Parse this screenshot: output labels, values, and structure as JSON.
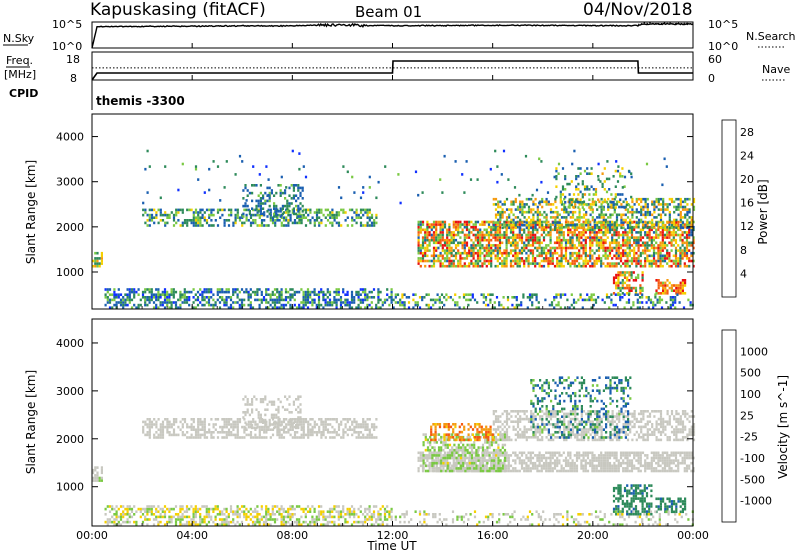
{
  "header": {
    "station": "Kapuskasing (fitACF)",
    "beam": "Beam 01",
    "date": "04/Nov/2018"
  },
  "noise_panel": {
    "left_label": "N.Sky",
    "right_label": "N.Search",
    "left_ticks": [
      "10^5",
      "10^0"
    ],
    "right_ticks": [
      "10^5",
      "10^0"
    ]
  },
  "freq_panel": {
    "left_label_1": "Freq.",
    "left_label_2": "[MHz]",
    "right_label": "Nave",
    "left_ticks": [
      "18",
      "8"
    ],
    "right_ticks": [
      "60",
      "0"
    ]
  },
  "cpid_panel": {
    "label": "CPID",
    "value": "themis -3300"
  },
  "time_axis": {
    "label": "Time UT",
    "ticks": [
      "00:00",
      "04:00",
      "08:00",
      "12:00",
      "16:00",
      "20:00",
      "00:00"
    ]
  },
  "chart_data": [
    {
      "type": "line",
      "panel": "noise",
      "series": [
        {
          "name": "N.Sky",
          "x_hours": [
            0,
            0.2,
            2,
            4,
            6,
            8,
            9,
            10,
            11,
            12,
            14,
            16,
            18,
            20,
            21.8,
            22,
            24
          ],
          "values_log10": [
            0,
            4.1,
            4.15,
            4.2,
            4.25,
            4.25,
            4.4,
            4.45,
            4.3,
            4.3,
            4.3,
            4.35,
            4.35,
            4.3,
            4.3,
            4.6,
            4.6
          ]
        },
        {
          "name": "N.Search",
          "x_hours": [
            21.8,
            22,
            24
          ],
          "values_log10": [
            4.5,
            4.8,
            4.7
          ]
        }
      ],
      "ylim_log10": [
        0,
        5
      ]
    },
    {
      "type": "line",
      "panel": "frequency",
      "series": [
        {
          "name": "Freq.",
          "x_hours": [
            0,
            0.2,
            12,
            12.02,
            21.8,
            21.82,
            24
          ],
          "values": [
            8,
            10.5,
            10.5,
            14.8,
            14.8,
            10.5,
            10.5
          ]
        },
        {
          "name": "Nave",
          "x_hours": [
            0,
            24
          ],
          "values": [
            26,
            26
          ]
        }
      ],
      "ylim_freq": [
        8,
        18
      ],
      "ylim_nave": [
        0,
        60
      ]
    },
    {
      "type": "heatmap",
      "panel": "power",
      "xlabel": "",
      "ylabel": "Slant Range [km]",
      "xlim_hours": [
        0,
        24
      ],
      "ylim_km": [
        180,
        4500
      ],
      "y_ticks": [
        1000,
        2000,
        3000,
        4000
      ],
      "colorbar": {
        "label": "Power [dB]",
        "ticks": [
          4,
          8,
          12,
          16,
          20,
          24,
          28
        ],
        "range": [
          0,
          30
        ],
        "colors": [
          "#1030ff",
          "#1a5fb0",
          "#2d8a5a",
          "#7ac943",
          "#f5d000",
          "#f59a10",
          "#f55a10",
          "#e81010"
        ]
      },
      "regions": [
        {
          "t": [
            0.5,
            12
          ],
          "r": [
            180,
            600
          ],
          "density": 0.55,
          "values": [
            2,
            14
          ]
        },
        {
          "t": [
            2.0,
            11.4
          ],
          "r": [
            2000,
            2400
          ],
          "density": 0.5,
          "values": [
            4,
            16
          ]
        },
        {
          "t": [
            6.0,
            8.4
          ],
          "r": [
            2200,
            2900
          ],
          "density": 0.35,
          "values": [
            4,
            12
          ]
        },
        {
          "t": [
            0.0,
            0.4
          ],
          "r": [
            1100,
            1400
          ],
          "density": 0.7,
          "values": [
            6,
            20
          ]
        },
        {
          "t": [
            13.0,
            24
          ],
          "r": [
            1100,
            2100
          ],
          "density": 0.7,
          "values": [
            6,
            30
          ]
        },
        {
          "t": [
            16.0,
            24
          ],
          "r": [
            1950,
            2600
          ],
          "density": 0.5,
          "values": [
            4,
            22
          ]
        },
        {
          "t": [
            18.5,
            21.5
          ],
          "r": [
            2400,
            3300
          ],
          "density": 0.25,
          "values": [
            4,
            20
          ]
        },
        {
          "t": [
            20.8,
            22.0
          ],
          "r": [
            500,
            1000
          ],
          "density": 0.55,
          "values": [
            6,
            30
          ]
        },
        {
          "t": [
            22.5,
            23.7
          ],
          "r": [
            500,
            800
          ],
          "density": 0.6,
          "values": [
            14,
            30
          ]
        },
        {
          "t": [
            12.0,
            24
          ],
          "r": [
            180,
            500
          ],
          "density": 0.3,
          "values": [
            2,
            16
          ]
        },
        {
          "t": [
            2.0,
            23.0
          ],
          "r": [
            2500,
            3700
          ],
          "density": 0.02,
          "values": [
            2,
            12
          ]
        }
      ]
    },
    {
      "type": "heatmap",
      "panel": "velocity",
      "xlabel": "Time UT",
      "ylabel": "Slant Range [km]",
      "xlim_hours": [
        0,
        24
      ],
      "ylim_km": [
        180,
        4500
      ],
      "y_ticks": [
        1000,
        2000,
        3000,
        4000
      ],
      "colorbar": {
        "label": "Velocity [m s^-1]",
        "ticks": [
          "1000",
          "500",
          "100",
          "25",
          "-25",
          "-100",
          "-500",
          "-1000"
        ],
        "range": [
          -1200,
          1200
        ],
        "colors": [
          "#1030ff",
          "#1a5fb0",
          "#2d8a5a",
          "#7ac943",
          "#c8c8c0",
          "#f5d000",
          "#f59a10",
          "#f55a10",
          "#e81010"
        ]
      },
      "regions": [
        {
          "t": [
            0.5,
            12
          ],
          "r": [
            180,
            600
          ],
          "density": 0.5,
          "values": [
            -300,
            300
          ]
        },
        {
          "t": [
            2.0,
            11.4
          ],
          "r": [
            2000,
            2400
          ],
          "density": 0.55,
          "values": [
            -20,
            20
          ]
        },
        {
          "t": [
            6.0,
            8.4
          ],
          "r": [
            2200,
            2900
          ],
          "density": 0.35,
          "values": [
            -20,
            20
          ]
        },
        {
          "t": [
            0.0,
            0.4
          ],
          "r": [
            1100,
            1400
          ],
          "density": 0.7,
          "values": [
            -200,
            100
          ]
        },
        {
          "t": [
            13.0,
            24
          ],
          "r": [
            1300,
            1700
          ],
          "density": 0.75,
          "values": [
            -20,
            20
          ]
        },
        {
          "t": [
            13.2,
            16.5
          ],
          "r": [
            1300,
            2100
          ],
          "density": 0.55,
          "values": [
            -400,
            150
          ]
        },
        {
          "t": [
            16.0,
            24
          ],
          "r": [
            1950,
            2600
          ],
          "density": 0.5,
          "values": [
            -30,
            30
          ]
        },
        {
          "t": [
            13.5,
            16.0
          ],
          "r": [
            1950,
            2300
          ],
          "density": 0.45,
          "values": [
            300,
            900
          ]
        },
        {
          "t": [
            17.5,
            21.5
          ],
          "r": [
            2000,
            3300
          ],
          "density": 0.3,
          "values": [
            -900,
            -300
          ]
        },
        {
          "t": [
            20.8,
            22.3
          ],
          "r": [
            400,
            1000
          ],
          "density": 0.6,
          "values": [
            -700,
            -400
          ]
        },
        {
          "t": [
            22.5,
            23.7
          ],
          "r": [
            450,
            750
          ],
          "density": 0.6,
          "values": [
            -700,
            -450
          ]
        },
        {
          "t": [
            12.0,
            24
          ],
          "r": [
            180,
            500
          ],
          "density": 0.25,
          "values": [
            -200,
            200
          ]
        }
      ]
    }
  ]
}
